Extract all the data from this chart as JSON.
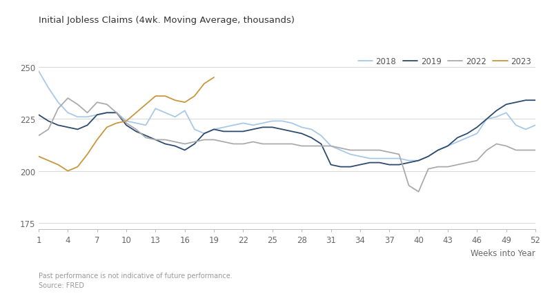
{
  "title": "Initial Jobless Claims (4wk. Moving Average, thousands)",
  "xlabel": "Weeks into Year",
  "footnote1": "Past performance is not indicative of future performance.",
  "footnote2": "Source: FRED",
  "background_color": "#ffffff",
  "grid_color": "#d0d0d0",
  "ylim": [
    172,
    257
  ],
  "yticks": [
    175,
    200,
    225,
    250
  ],
  "xticks": [
    1,
    4,
    7,
    10,
    13,
    16,
    19,
    22,
    25,
    28,
    31,
    34,
    37,
    40,
    43,
    46,
    49,
    52
  ],
  "series": {
    "2018": {
      "color": "#a8c8e8",
      "linewidth": 1.3,
      "data_weeks": [
        1,
        2,
        3,
        4,
        5,
        6,
        7,
        8,
        9,
        10,
        11,
        12,
        13,
        14,
        15,
        16,
        17,
        18,
        19,
        20,
        21,
        22,
        23,
        24,
        25,
        26,
        27,
        28,
        29,
        30,
        31,
        32,
        33,
        34,
        35,
        36,
        37,
        38,
        39,
        40,
        41,
        42,
        43,
        44,
        45,
        46,
        47,
        48,
        49,
        50,
        51,
        52
      ],
      "data_values": [
        248,
        240,
        233,
        228,
        226,
        226,
        227,
        228,
        228,
        224,
        223,
        222,
        230,
        228,
        226,
        229,
        220,
        218,
        220,
        221,
        222,
        223,
        222,
        223,
        224,
        224,
        223,
        221,
        220,
        217,
        212,
        210,
        208,
        207,
        206,
        206,
        206,
        206,
        205,
        205,
        207,
        210,
        212,
        214,
        216,
        218,
        225,
        226,
        228,
        222,
        220,
        222
      ]
    },
    "2019": {
      "color": "#2c4a6e",
      "linewidth": 1.3,
      "data_weeks": [
        1,
        2,
        3,
        4,
        5,
        6,
        7,
        8,
        9,
        10,
        11,
        12,
        13,
        14,
        15,
        16,
        17,
        18,
        19,
        20,
        21,
        22,
        23,
        24,
        25,
        26,
        27,
        28,
        29,
        30,
        31,
        32,
        33,
        34,
        35,
        36,
        37,
        38,
        39,
        40,
        41,
        42,
        43,
        44,
        45,
        46,
        47,
        48,
        49,
        50,
        51,
        52
      ],
      "data_values": [
        227,
        224,
        222,
        221,
        220,
        222,
        227,
        228,
        228,
        222,
        219,
        217,
        215,
        213,
        212,
        210,
        213,
        218,
        220,
        219,
        219,
        219,
        220,
        221,
        221,
        220,
        219,
        218,
        216,
        213,
        203,
        202,
        202,
        203,
        204,
        204,
        203,
        203,
        204,
        205,
        207,
        210,
        212,
        216,
        218,
        221,
        225,
        229,
        232,
        233,
        234,
        234
      ]
    },
    "2022": {
      "color": "#aaaaaa",
      "linewidth": 1.3,
      "data_weeks": [
        1,
        2,
        3,
        4,
        5,
        6,
        7,
        8,
        9,
        10,
        11,
        12,
        13,
        14,
        15,
        16,
        17,
        18,
        19,
        20,
        21,
        22,
        23,
        24,
        25,
        26,
        27,
        28,
        29,
        30,
        31,
        32,
        33,
        34,
        35,
        36,
        37,
        38,
        39,
        40,
        41,
        42,
        43,
        44,
        45,
        46,
        47,
        48,
        49,
        50,
        51,
        52
      ],
      "data_values": [
        217,
        220,
        230,
        235,
        232,
        228,
        233,
        232,
        228,
        223,
        220,
        216,
        215,
        215,
        214,
        213,
        214,
        215,
        215,
        214,
        213,
        213,
        214,
        213,
        213,
        213,
        213,
        212,
        212,
        212,
        212,
        211,
        210,
        210,
        210,
        210,
        209,
        208,
        193,
        190,
        201,
        202,
        202,
        203,
        204,
        205,
        210,
        213,
        212,
        210,
        210,
        210
      ]
    },
    "2023": {
      "color": "#c8963c",
      "linewidth": 1.3,
      "data_weeks": [
        1,
        2,
        3,
        4,
        5,
        6,
        7,
        8,
        9,
        10,
        11,
        12,
        13,
        14,
        15,
        16,
        17,
        18,
        19
      ],
      "data_values": [
        207,
        205,
        203,
        200,
        202,
        208,
        215,
        221,
        223,
        224,
        228,
        232,
        236,
        236,
        234,
        233,
        236,
        242,
        245
      ]
    }
  },
  "legend": {
    "labels": [
      "2018",
      "2019",
      "2022",
      "2023"
    ],
    "colors": [
      "#a8c8e8",
      "#2c4a6e",
      "#aaaaaa",
      "#c8963c"
    ]
  }
}
